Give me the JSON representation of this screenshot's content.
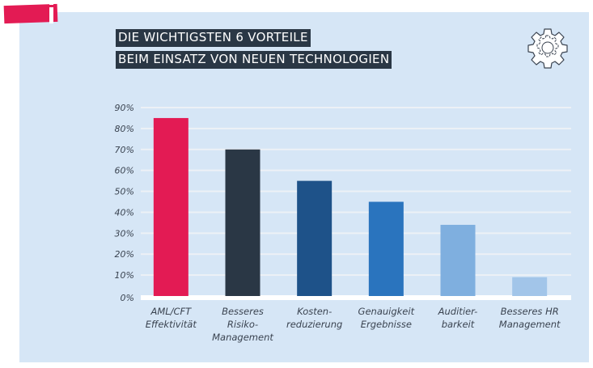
{
  "header": {
    "badge_icon": "info-icon",
    "title_line1": "DIE WICHTIGSTEN 6 VORTEILE",
    "title_line2": "BEIM EINSATZ VON NEUEN TECHNOLOGIEN",
    "corner_icon": "gear-icon"
  },
  "colors": {
    "panel_bg": "#d6e6f6",
    "title_bg": "#2a3745",
    "badge": "#e31b54"
  },
  "chart_data": {
    "type": "bar",
    "title": "DIE WICHTIGSTEN 6 VORTEILE BEIM EINSATZ VON NEUEN TECHNOLOGIEN",
    "xlabel": "",
    "ylabel": "",
    "ylim": [
      0,
      90
    ],
    "yticks": [
      "0%",
      "10%",
      "20%",
      "30%",
      "40%",
      "50%",
      "60%",
      "70%",
      "80%",
      "90%"
    ],
    "grid": true,
    "legend": "none",
    "categories": [
      "AML/CFT\nEffektivität",
      "Besseres\nRisiko-\nManagement",
      "Kosten-\nreduzierung",
      "Genauigkeit\nErgebnisse",
      "Auditier-\nbarkeit",
      "Besseres HR\nManagement"
    ],
    "values": [
      85,
      70,
      55,
      45,
      34,
      9
    ],
    "bar_colors": [
      "#e31b54",
      "#2a3745",
      "#1e5289",
      "#2a74be",
      "#7fafdf",
      "#a2c5e9"
    ]
  }
}
